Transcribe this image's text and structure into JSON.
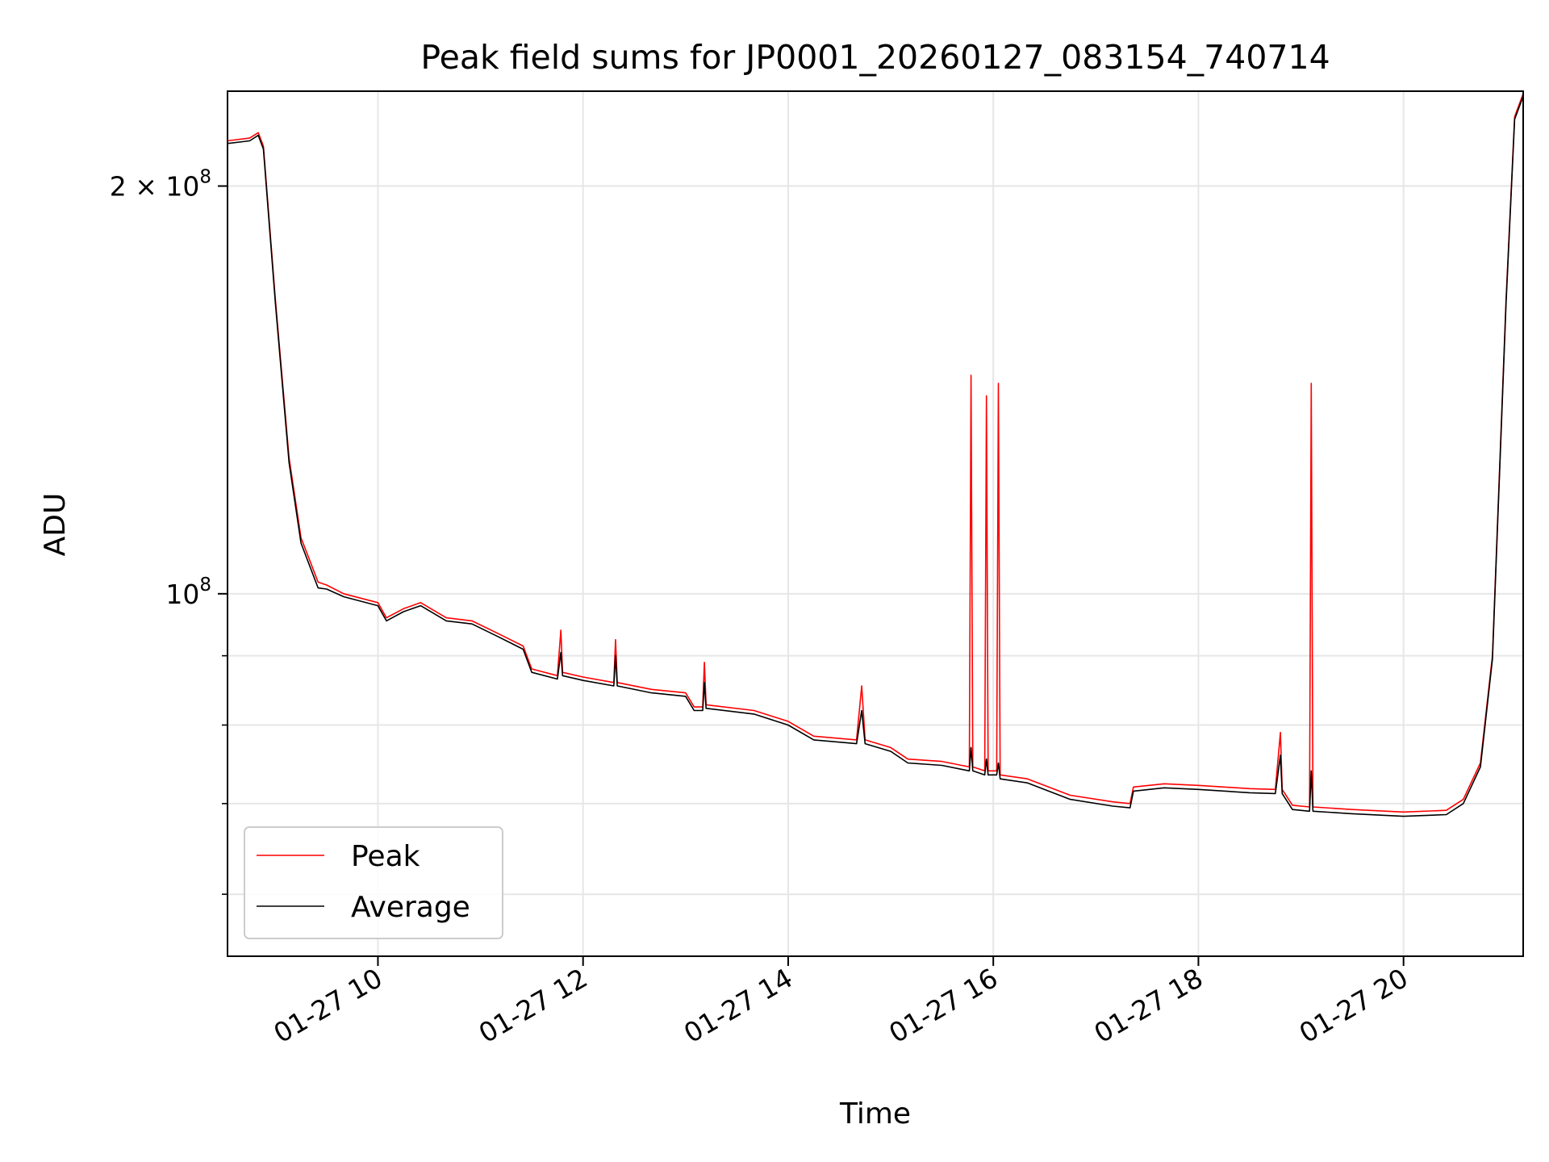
{
  "chart_data": {
    "type": "line",
    "title": "Peak field sums for JP0001_20260127_083154_740714",
    "xlabel": "Time",
    "ylabel": "ADU",
    "yscale": "log",
    "grid": true,
    "legend_position": "lower-left",
    "x_range": [
      "2026-01-27 08:32",
      "2026-01-27 21:10"
    ],
    "y_range": [
      54000000,
      235000000
    ],
    "x_ticks": [
      {
        "value": "2026-01-27 10:00",
        "label": "01-27 10"
      },
      {
        "value": "2026-01-27 12:00",
        "label": "01-27 12"
      },
      {
        "value": "2026-01-27 14:00",
        "label": "01-27 14"
      },
      {
        "value": "2026-01-27 16:00",
        "label": "01-27 16"
      },
      {
        "value": "2026-01-27 18:00",
        "label": "01-27 18"
      },
      {
        "value": "2026-01-27 20:00",
        "label": "01-27 20"
      }
    ],
    "y_major_ticks": [
      {
        "value": 100000000,
        "base": "10",
        "exp": "8",
        "mantissa": ""
      },
      {
        "value": 200000000,
        "base": "10",
        "exp": "8",
        "mantissa": "2 × "
      }
    ],
    "y_minor_ticks": [
      60000000,
      70000000,
      80000000,
      90000000
    ],
    "series": [
      {
        "name": "Peak",
        "color": "#ff0000",
        "points": [
          [
            "2026-01-27 08:32",
            216000000
          ],
          [
            "2026-01-27 08:45",
            217000000
          ],
          [
            "2026-01-27 08:50",
            219000000
          ],
          [
            "2026-01-27 08:53",
            214000000
          ],
          [
            "2026-01-27 09:00",
            165000000
          ],
          [
            "2026-01-27 09:08",
            126000000
          ],
          [
            "2026-01-27 09:15",
            110000000
          ],
          [
            "2026-01-27 09:25",
            102000000
          ],
          [
            "2026-01-27 09:30",
            101500000
          ],
          [
            "2026-01-27 09:40",
            100000000
          ],
          [
            "2026-01-27 10:00",
            98500000
          ],
          [
            "2026-01-27 10:05",
            96000000
          ],
          [
            "2026-01-27 10:15",
            97500000
          ],
          [
            "2026-01-27 10:25",
            98500000
          ],
          [
            "2026-01-27 10:40",
            96000000
          ],
          [
            "2026-01-27 10:55",
            95500000
          ],
          [
            "2026-01-27 11:10",
            93500000
          ],
          [
            "2026-01-27 11:25",
            91500000
          ],
          [
            "2026-01-27 11:30",
            88000000
          ],
          [
            "2026-01-27 11:45",
            87000000
          ],
          [
            "2026-01-27 11:47",
            94000000
          ],
          [
            "2026-01-27 11:48",
            87500000
          ],
          [
            "2026-01-27 12:00",
            86800000
          ],
          [
            "2026-01-27 12:18",
            86000000
          ],
          [
            "2026-01-27 12:19",
            92500000
          ],
          [
            "2026-01-27 12:20",
            86000000
          ],
          [
            "2026-01-27 12:40",
            85000000
          ],
          [
            "2026-01-27 13:00",
            84500000
          ],
          [
            "2026-01-27 13:05",
            82500000
          ],
          [
            "2026-01-27 13:10",
            82500000
          ],
          [
            "2026-01-27 13:11",
            89000000
          ],
          [
            "2026-01-27 13:12",
            82800000
          ],
          [
            "2026-01-27 13:40",
            82000000
          ],
          [
            "2026-01-27 14:00",
            80500000
          ],
          [
            "2026-01-27 14:15",
            78500000
          ],
          [
            "2026-01-27 14:40",
            78000000
          ],
          [
            "2026-01-27 14:43",
            85500000
          ],
          [
            "2026-01-27 14:45",
            78000000
          ],
          [
            "2026-01-27 15:00",
            77000000
          ],
          [
            "2026-01-27 15:10",
            75500000
          ],
          [
            "2026-01-27 15:30",
            75200000
          ],
          [
            "2026-01-27 15:46",
            74500000
          ],
          [
            "2026-01-27 15:47",
            145000000
          ],
          [
            "2026-01-27 15:48",
            74500000
          ],
          [
            "2026-01-27 15:55",
            74000000
          ],
          [
            "2026-01-27 15:56",
            140000000
          ],
          [
            "2026-01-27 15:57",
            74000000
          ],
          [
            "2026-01-27 16:02",
            74000000
          ],
          [
            "2026-01-27 16:03",
            143000000
          ],
          [
            "2026-01-27 16:04",
            73500000
          ],
          [
            "2026-01-27 16:20",
            73000000
          ],
          [
            "2026-01-27 16:45",
            71000000
          ],
          [
            "2026-01-27 17:10",
            70200000
          ],
          [
            "2026-01-27 17:20",
            70000000
          ],
          [
            "2026-01-27 17:22",
            72000000
          ],
          [
            "2026-01-27 17:40",
            72400000
          ],
          [
            "2026-01-27 18:00",
            72200000
          ],
          [
            "2026-01-27 18:30",
            71800000
          ],
          [
            "2026-01-27 18:45",
            71700000
          ],
          [
            "2026-01-27 18:48",
            79000000
          ],
          [
            "2026-01-27 18:49",
            71700000
          ],
          [
            "2026-01-27 18:55",
            69800000
          ],
          [
            "2026-01-27 19:05",
            69600000
          ],
          [
            "2026-01-27 19:06",
            143000000
          ],
          [
            "2026-01-27 19:07",
            69600000
          ],
          [
            "2026-01-27 19:30",
            69300000
          ],
          [
            "2026-01-27 20:00",
            69000000
          ],
          [
            "2026-01-27 20:25",
            69200000
          ],
          [
            "2026-01-27 20:35",
            70500000
          ],
          [
            "2026-01-27 20:45",
            75000000
          ],
          [
            "2026-01-27 20:52",
            90000000
          ],
          [
            "2026-01-27 21:00",
            165000000
          ],
          [
            "2026-01-27 21:05",
            225000000
          ],
          [
            "2026-01-27 21:10",
            234000000
          ]
        ]
      },
      {
        "name": "Average",
        "color": "#000000",
        "points": [
          [
            "2026-01-27 08:32",
            215000000
          ],
          [
            "2026-01-27 08:45",
            216000000
          ],
          [
            "2026-01-27 08:50",
            218000000
          ],
          [
            "2026-01-27 08:53",
            213000000
          ],
          [
            "2026-01-27 09:00",
            164000000
          ],
          [
            "2026-01-27 09:08",
            125000000
          ],
          [
            "2026-01-27 09:15",
            109000000
          ],
          [
            "2026-01-27 09:25",
            101000000
          ],
          [
            "2026-01-27 09:30",
            100800000
          ],
          [
            "2026-01-27 09:40",
            99500000
          ],
          [
            "2026-01-27 10:00",
            98000000
          ],
          [
            "2026-01-27 10:05",
            95500000
          ],
          [
            "2026-01-27 10:15",
            97000000
          ],
          [
            "2026-01-27 10:25",
            98000000
          ],
          [
            "2026-01-27 10:40",
            95500000
          ],
          [
            "2026-01-27 10:55",
            95000000
          ],
          [
            "2026-01-27 11:10",
            93000000
          ],
          [
            "2026-01-27 11:25",
            91000000
          ],
          [
            "2026-01-27 11:30",
            87500000
          ],
          [
            "2026-01-27 11:45",
            86500000
          ],
          [
            "2026-01-27 11:47",
            90500000
          ],
          [
            "2026-01-27 11:48",
            87000000
          ],
          [
            "2026-01-27 12:00",
            86300000
          ],
          [
            "2026-01-27 12:18",
            85500000
          ],
          [
            "2026-01-27 12:19",
            90000000
          ],
          [
            "2026-01-27 12:20",
            85500000
          ],
          [
            "2026-01-27 12:40",
            84500000
          ],
          [
            "2026-01-27 13:00",
            84000000
          ],
          [
            "2026-01-27 13:05",
            82000000
          ],
          [
            "2026-01-27 13:10",
            82000000
          ],
          [
            "2026-01-27 13:11",
            86000000
          ],
          [
            "2026-01-27 13:12",
            82300000
          ],
          [
            "2026-01-27 13:40",
            81500000
          ],
          [
            "2026-01-27 14:00",
            80000000
          ],
          [
            "2026-01-27 14:15",
            78000000
          ],
          [
            "2026-01-27 14:40",
            77500000
          ],
          [
            "2026-01-27 14:43",
            82000000
          ],
          [
            "2026-01-27 14:45",
            77500000
          ],
          [
            "2026-01-27 15:00",
            76500000
          ],
          [
            "2026-01-27 15:10",
            75000000
          ],
          [
            "2026-01-27 15:30",
            74700000
          ],
          [
            "2026-01-27 15:46",
            74000000
          ],
          [
            "2026-01-27 15:47",
            77000000
          ],
          [
            "2026-01-27 15:48",
            74000000
          ],
          [
            "2026-01-27 15:55",
            73500000
          ],
          [
            "2026-01-27 15:56",
            75500000
          ],
          [
            "2026-01-27 15:57",
            73500000
          ],
          [
            "2026-01-27 16:02",
            73500000
          ],
          [
            "2026-01-27 16:03",
            75000000
          ],
          [
            "2026-01-27 16:04",
            73000000
          ],
          [
            "2026-01-27 16:20",
            72500000
          ],
          [
            "2026-01-27 16:45",
            70500000
          ],
          [
            "2026-01-27 17:10",
            69700000
          ],
          [
            "2026-01-27 17:20",
            69500000
          ],
          [
            "2026-01-27 17:22",
            71500000
          ],
          [
            "2026-01-27 17:40",
            71900000
          ],
          [
            "2026-01-27 18:00",
            71700000
          ],
          [
            "2026-01-27 18:30",
            71300000
          ],
          [
            "2026-01-27 18:45",
            71200000
          ],
          [
            "2026-01-27 18:48",
            76000000
          ],
          [
            "2026-01-27 18:49",
            71200000
          ],
          [
            "2026-01-27 18:55",
            69300000
          ],
          [
            "2026-01-27 19:05",
            69100000
          ],
          [
            "2026-01-27 19:06",
            74000000
          ],
          [
            "2026-01-27 19:07",
            69100000
          ],
          [
            "2026-01-27 19:30",
            68800000
          ],
          [
            "2026-01-27 20:00",
            68500000
          ],
          [
            "2026-01-27 20:25",
            68700000
          ],
          [
            "2026-01-27 20:35",
            70000000
          ],
          [
            "2026-01-27 20:45",
            74500000
          ],
          [
            "2026-01-27 20:52",
            89500000
          ],
          [
            "2026-01-27 21:00",
            164000000
          ],
          [
            "2026-01-27 21:05",
            224000000
          ],
          [
            "2026-01-27 21:10",
            233000000
          ]
        ]
      }
    ]
  }
}
